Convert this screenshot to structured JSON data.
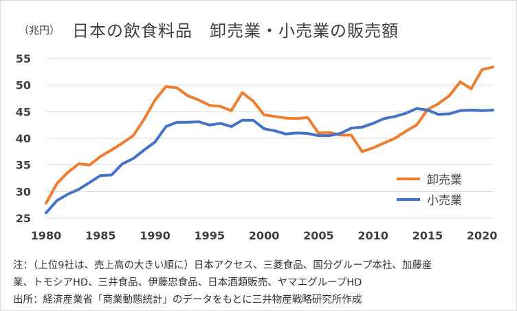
{
  "title": "日本の飲食料品　卸売業・小売業の販売額",
  "unit": "（兆円）",
  "notes": {
    "line1": "注：（上位9社は、売上高の大きい順に）日本アクセス、三菱食品、国分グループ本社、加藤産",
    "line2": "業、トモシアHD、三井食品、伊藤忠食品、日本酒類販売、ヤマエグループHD",
    "line3": "出所：経済産業省「商業動態統計」のデータをもとに三井物産戦略研究所作成"
  },
  "chart_data": {
    "type": "line",
    "title": "日本の飲食料品　卸売業・小売業の販売額",
    "xlabel": "",
    "ylabel": "（兆円）",
    "xlim": [
      1980,
      2021
    ],
    "ylim": [
      25,
      55
    ],
    "yticks": [
      25,
      30,
      35,
      40,
      45,
      50,
      55
    ],
    "xticks": [
      1980,
      1985,
      1990,
      1995,
      2000,
      2005,
      2010,
      2015,
      2020
    ],
    "grid": "horizontal",
    "legend_position": "right-middle",
    "x": [
      1980,
      1981,
      1982,
      1983,
      1984,
      1985,
      1986,
      1987,
      1988,
      1989,
      1990,
      1991,
      1992,
      1993,
      1994,
      1995,
      1996,
      1997,
      1998,
      1999,
      2000,
      2001,
      2002,
      2003,
      2004,
      2005,
      2006,
      2007,
      2008,
      2009,
      2010,
      2011,
      2012,
      2013,
      2014,
      2015,
      2016,
      2017,
      2018,
      2019,
      2020,
      2021
    ],
    "series": [
      {
        "name": "卸売業",
        "color": "#ED7D31",
        "values": [
          27.8,
          31.5,
          33.6,
          35.2,
          35.0,
          36.6,
          37.8,
          39.1,
          40.5,
          43.6,
          47.2,
          49.7,
          49.5,
          48.0,
          47.2,
          46.2,
          46.0,
          45.2,
          48.6,
          47.0,
          44.4,
          44.1,
          43.8,
          43.7,
          43.9,
          41.0,
          41.1,
          40.6,
          40.6,
          37.5,
          38.2,
          39.1,
          40.0,
          41.3,
          42.5,
          45.4,
          46.5,
          48.0,
          50.6,
          49.3,
          52.9,
          53.4
        ]
      },
      {
        "name": "小売業",
        "color": "#4472C4",
        "values": [
          26.0,
          28.3,
          29.5,
          30.4,
          31.7,
          33.0,
          33.1,
          35.2,
          36.2,
          37.8,
          39.3,
          42.2,
          43.0,
          43.0,
          43.1,
          42.5,
          42.8,
          42.2,
          43.4,
          43.4,
          41.8,
          41.4,
          40.8,
          41.0,
          40.9,
          40.5,
          40.5,
          40.9,
          41.9,
          42.1,
          42.8,
          43.7,
          44.1,
          44.7,
          45.6,
          45.3,
          44.5,
          44.6,
          45.2,
          45.3,
          45.2,
          45.3
        ]
      }
    ]
  }
}
